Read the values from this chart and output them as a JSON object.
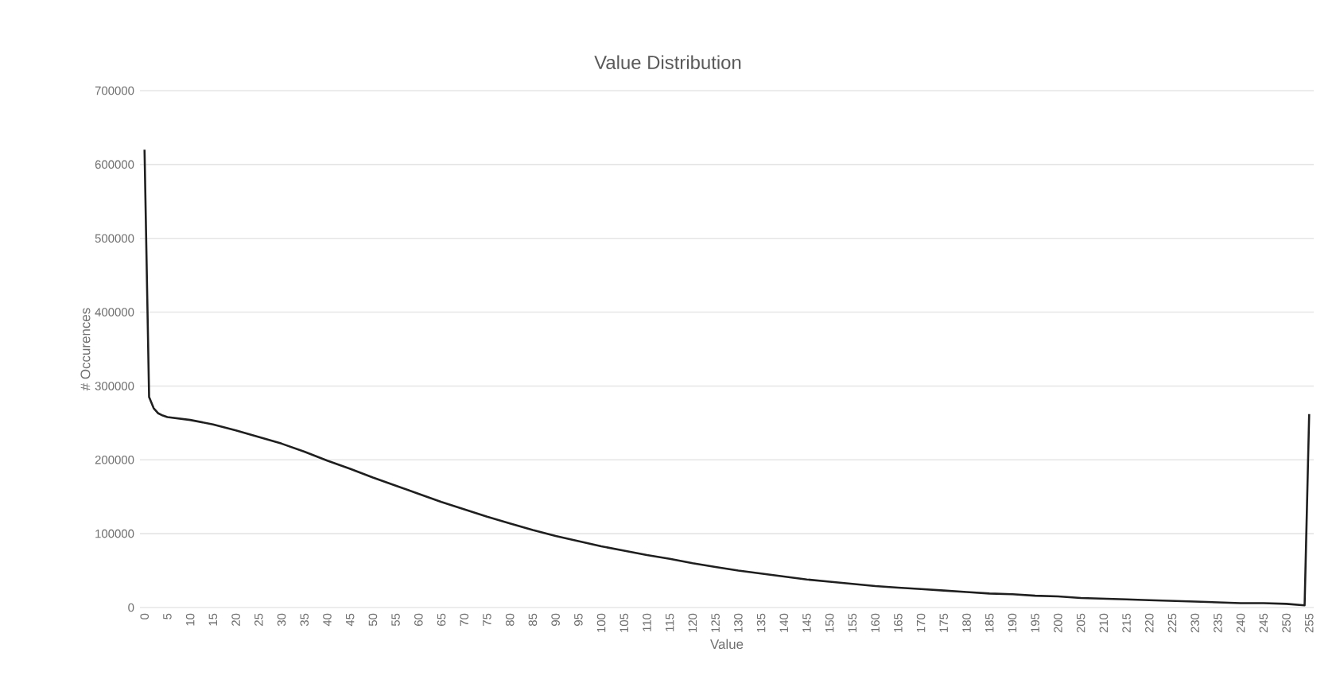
{
  "chart_data": {
    "type": "line",
    "title": "Value Distribution",
    "xlabel": "Value",
    "ylabel": "# Occurences",
    "x": [
      0,
      1,
      2,
      3,
      4,
      5,
      10,
      15,
      20,
      25,
      30,
      35,
      40,
      45,
      50,
      55,
      60,
      65,
      70,
      75,
      80,
      85,
      90,
      95,
      100,
      105,
      110,
      115,
      120,
      125,
      130,
      135,
      140,
      145,
      150,
      155,
      160,
      165,
      170,
      175,
      180,
      185,
      190,
      195,
      200,
      205,
      210,
      215,
      220,
      225,
      230,
      235,
      240,
      245,
      250,
      254,
      255
    ],
    "values": [
      620000,
      285000,
      270000,
      263000,
      260000,
      258000,
      254000,
      248000,
      240000,
      231000,
      222000,
      211000,
      199000,
      188000,
      176000,
      165000,
      154000,
      143000,
      133000,
      123000,
      114000,
      105000,
      97000,
      90000,
      83000,
      77000,
      71000,
      66000,
      60000,
      55000,
      50000,
      46000,
      42000,
      38000,
      35000,
      32000,
      29000,
      27000,
      25000,
      23000,
      21000,
      19000,
      18000,
      16000,
      15000,
      13000,
      12000,
      11000,
      10000,
      9000,
      8000,
      7000,
      6000,
      6000,
      5000,
      3000,
      262000
    ],
    "color": "#1f1f1f",
    "xlim": [
      -1,
      256
    ],
    "xticks": [
      0,
      5,
      10,
      15,
      20,
      25,
      30,
      35,
      40,
      45,
      50,
      55,
      60,
      65,
      70,
      75,
      80,
      85,
      90,
      95,
      100,
      105,
      110,
      115,
      120,
      125,
      130,
      135,
      140,
      145,
      150,
      155,
      160,
      165,
      170,
      175,
      180,
      185,
      190,
      195,
      200,
      205,
      210,
      215,
      220,
      225,
      230,
      235,
      240,
      245,
      250,
      255
    ],
    "ylim": [
      0,
      700000
    ],
    "yticks": [
      0,
      100000,
      200000,
      300000,
      400000,
      500000,
      600000,
      700000
    ],
    "grid": "y"
  }
}
